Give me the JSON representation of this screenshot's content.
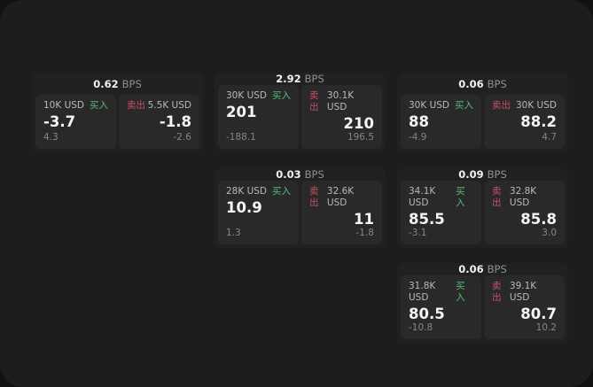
{
  "labels": {
    "bps_unit": "BPS",
    "buy": "买入",
    "sell": "卖出"
  },
  "colors": {
    "outer_bg": "#121212",
    "panel_bg": "#1d1d1d",
    "card_bg": "#212121",
    "tile_bg": "#292929",
    "buy_green": "#54bd77",
    "sell_red": "#c85064",
    "text_primary": "#f5f5f5",
    "text_label": "#b9b9b9",
    "text_muted": "#868686"
  },
  "cards": [
    {
      "bps": "0.62",
      "buy": {
        "size": "10K USD",
        "value": "-3.7",
        "delta": "4.3"
      },
      "sell": {
        "size": "5.5K USD",
        "value": "-1.8",
        "delta": "-2.6"
      }
    },
    {
      "bps": "2.92",
      "buy": {
        "size": "30K USD",
        "value": "201",
        "delta": "-188.1"
      },
      "sell": {
        "size": "30.1K USD",
        "value": "210",
        "delta": "196.5"
      }
    },
    {
      "bps": "0.06",
      "buy": {
        "size": "30K USD",
        "value": "88",
        "delta": "-4.9"
      },
      "sell": {
        "size": "30K USD",
        "value": "88.2",
        "delta": "4.7"
      }
    },
    {
      "bps": "0.03",
      "buy": {
        "size": "28K USD",
        "value": "10.9",
        "delta": "1.3"
      },
      "sell": {
        "size": "32.6K USD",
        "value": "11",
        "delta": "-1.8"
      }
    },
    {
      "bps": "0.09",
      "buy": {
        "size": "34.1K USD",
        "value": "85.5",
        "delta": "-3.1"
      },
      "sell": {
        "size": "32.8K USD",
        "value": "85.8",
        "delta": "3.0"
      }
    },
    {
      "bps": "0.06",
      "buy": {
        "size": "31.8K USD",
        "value": "80.5",
        "delta": "-10.8"
      },
      "sell": {
        "size": "39.1K USD",
        "value": "80.7",
        "delta": "10.2"
      }
    }
  ]
}
